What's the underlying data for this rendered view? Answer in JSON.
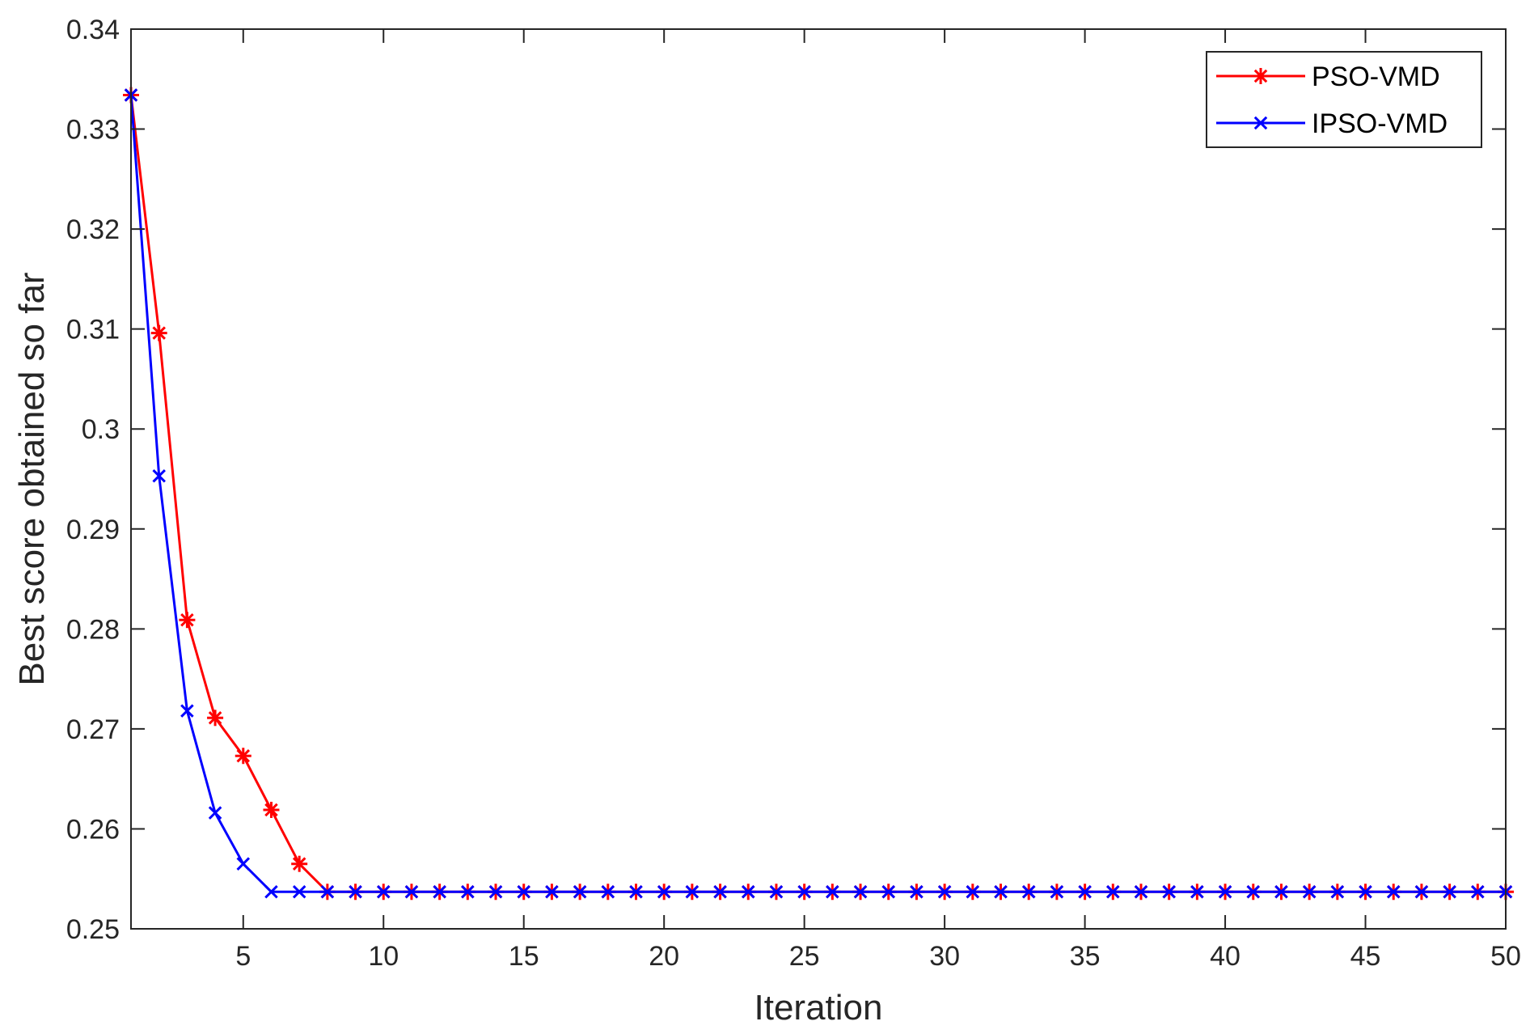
{
  "chart_data": {
    "type": "line",
    "title": "",
    "xlabel": "Iteration",
    "ylabel": "Best score obtained so far",
    "xlim": [
      1,
      50
    ],
    "ylim": [
      0.25,
      0.34
    ],
    "x_ticks": [
      5,
      10,
      15,
      20,
      25,
      30,
      35,
      40,
      45,
      50
    ],
    "y_ticks": [
      0.25,
      0.26,
      0.27,
      0.28,
      0.29,
      0.3,
      0.31,
      0.32,
      0.33,
      0.34
    ],
    "x_tick_labels": [
      "5",
      "10",
      "15",
      "20",
      "25",
      "30",
      "35",
      "40",
      "45",
      "50"
    ],
    "y_tick_labels": [
      "0.25",
      "0.26",
      "0.27",
      "0.28",
      "0.29",
      "0.3",
      "0.31",
      "0.32",
      "0.33",
      "0.34"
    ],
    "grid": false,
    "legend": "top-right",
    "x": [
      1,
      2,
      3,
      4,
      5,
      6,
      7,
      8,
      9,
      10,
      11,
      12,
      13,
      14,
      15,
      16,
      17,
      18,
      19,
      20,
      21,
      22,
      23,
      24,
      25,
      26,
      27,
      28,
      29,
      30,
      31,
      32,
      33,
      34,
      35,
      36,
      37,
      38,
      39,
      40,
      41,
      42,
      43,
      44,
      45,
      46,
      47,
      48,
      49,
      50
    ],
    "series": [
      {
        "name": "PSO-VMD",
        "color": "#ff0000",
        "marker": "asterisk",
        "values": [
          0.3334,
          0.3096,
          0.2809,
          0.2711,
          0.2673,
          0.2619,
          0.2565,
          0.2537,
          0.2537,
          0.2537,
          0.2537,
          0.2537,
          0.2537,
          0.2537,
          0.2537,
          0.2537,
          0.2537,
          0.2537,
          0.2537,
          0.2537,
          0.2537,
          0.2537,
          0.2537,
          0.2537,
          0.2537,
          0.2537,
          0.2537,
          0.2537,
          0.2537,
          0.2537,
          0.2537,
          0.2537,
          0.2537,
          0.2537,
          0.2537,
          0.2537,
          0.2537,
          0.2537,
          0.2537,
          0.2537,
          0.2537,
          0.2537,
          0.2537,
          0.2537,
          0.2537,
          0.2537,
          0.2537,
          0.2537,
          0.2537,
          0.2537
        ]
      },
      {
        "name": "IPSO-VMD",
        "color": "#0000ff",
        "marker": "x",
        "values": [
          0.3334,
          0.2953,
          0.2718,
          0.2616,
          0.2565,
          0.2537,
          0.2537,
          0.2537,
          0.2537,
          0.2537,
          0.2537,
          0.2537,
          0.2537,
          0.2537,
          0.2537,
          0.2537,
          0.2537,
          0.2537,
          0.2537,
          0.2537,
          0.2537,
          0.2537,
          0.2537,
          0.2537,
          0.2537,
          0.2537,
          0.2537,
          0.2537,
          0.2537,
          0.2537,
          0.2537,
          0.2537,
          0.2537,
          0.2537,
          0.2537,
          0.2537,
          0.2537,
          0.2537,
          0.2537,
          0.2537,
          0.2537,
          0.2537,
          0.2537,
          0.2537,
          0.2537,
          0.2537,
          0.2537,
          0.2537,
          0.2537,
          0.2537
        ]
      }
    ]
  }
}
